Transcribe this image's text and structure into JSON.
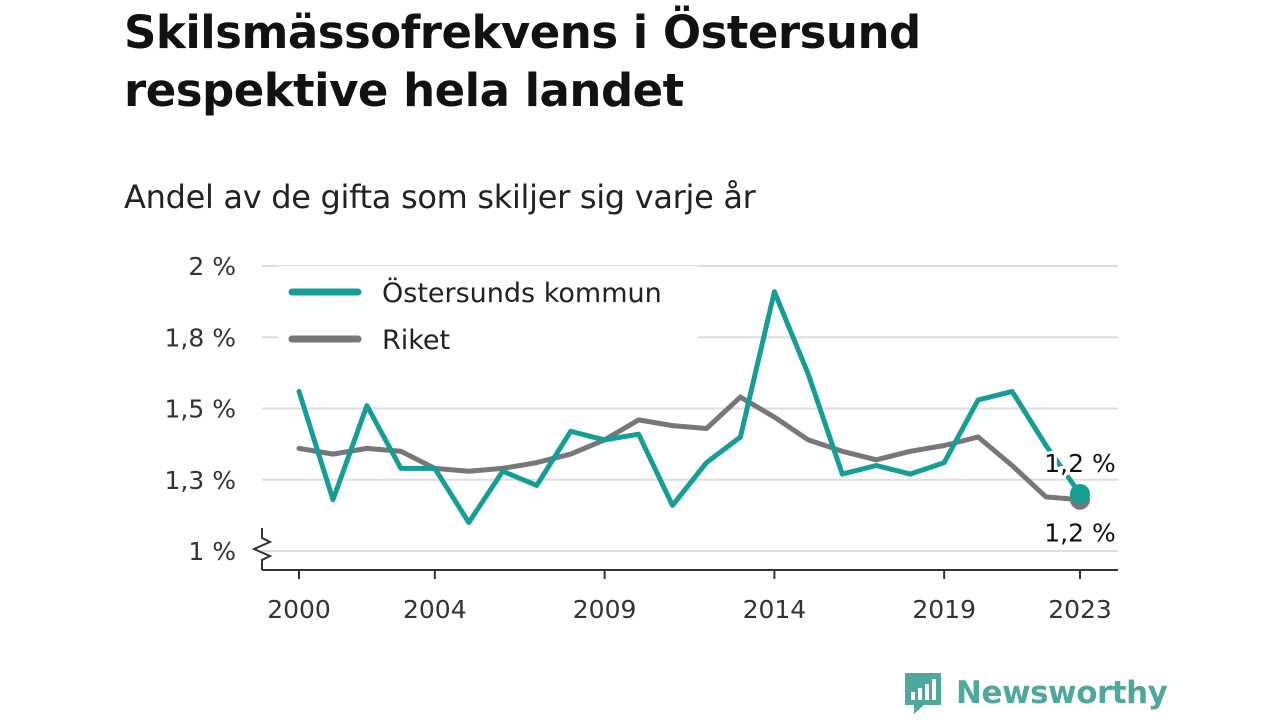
{
  "chart_data": {
    "type": "line",
    "title": "Skilsmässofrekvens i Östersund respektive hela landet",
    "subtitle": "Andel av de gifta som skiljer sig varje år",
    "x": [
      2000,
      2001,
      2002,
      2003,
      2004,
      2005,
      2006,
      2007,
      2008,
      2009,
      2010,
      2011,
      2012,
      2013,
      2014,
      2015,
      2016,
      2017,
      2018,
      2019,
      2020,
      2021,
      2022,
      2023
    ],
    "x_tick_labels": [
      "2000",
      "2004",
      "2009",
      "2014",
      "2019",
      "2023"
    ],
    "x_tick_values": [
      2000,
      2004,
      2009,
      2014,
      2019,
      2023
    ],
    "y_tick_labels": [
      "1 %",
      "1,3 %",
      "1,5 %",
      "1,8 %",
      "2 %"
    ],
    "y_tick_values": [
      1.0,
      1.25,
      1.5,
      1.75,
      2.0
    ],
    "ylim": [
      1.0,
      2.0
    ],
    "y_axis_break": true,
    "grid": true,
    "legend_position": "top-left",
    "series": [
      {
        "name": "Östersunds kommun",
        "color": "#159f94",
        "values": [
          1.56,
          1.18,
          1.51,
          1.29,
          1.29,
          1.1,
          1.28,
          1.23,
          1.42,
          1.39,
          1.41,
          1.16,
          1.31,
          1.4,
          1.91,
          1.62,
          1.27,
          1.3,
          1.27,
          1.31,
          1.53,
          1.56,
          1.37,
          1.2
        ],
        "end_label": "1,2 %"
      },
      {
        "name": "Riket",
        "color": "#77767b",
        "values": [
          1.36,
          1.34,
          1.36,
          1.35,
          1.29,
          1.28,
          1.29,
          1.31,
          1.34,
          1.39,
          1.46,
          1.44,
          1.43,
          1.54,
          1.47,
          1.39,
          1.35,
          1.32,
          1.35,
          1.37,
          1.4,
          1.3,
          1.19,
          1.18
        ],
        "end_label": "1,2 %"
      }
    ]
  },
  "brand": {
    "name": "Newsworthy",
    "logo_icon": "bar-chart-speech-bubble-icon",
    "color": "#4fa89c"
  }
}
